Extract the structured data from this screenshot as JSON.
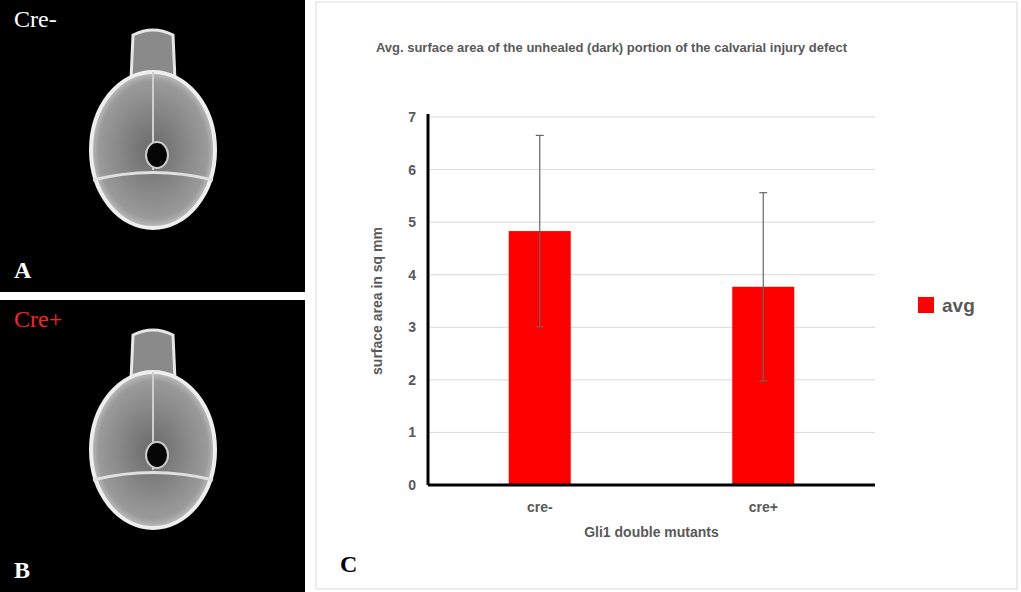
{
  "images": [
    {
      "letter": "A",
      "label": "Cre-"
    },
    {
      "letter": "B",
      "label": "Cre+"
    }
  ],
  "panel_letter": "C",
  "chart_data": {
    "type": "bar",
    "title": "Avg. surface area of the unhealed (dark) portion of the calvarial injury defect",
    "x_label": "Gli1 double mutants",
    "y_label": "surface area in sq mm",
    "categories": [
      "cre-",
      "cre+"
    ],
    "series": [
      {
        "name": "avg",
        "color": "#ff0000",
        "values": [
          4.83,
          3.77
        ],
        "errors": [
          1.82,
          1.79
        ]
      }
    ],
    "ylim": [
      0,
      7
    ],
    "yticks": [
      0,
      1,
      2,
      3,
      4,
      5,
      6,
      7
    ],
    "grid": true,
    "legend": "right"
  }
}
